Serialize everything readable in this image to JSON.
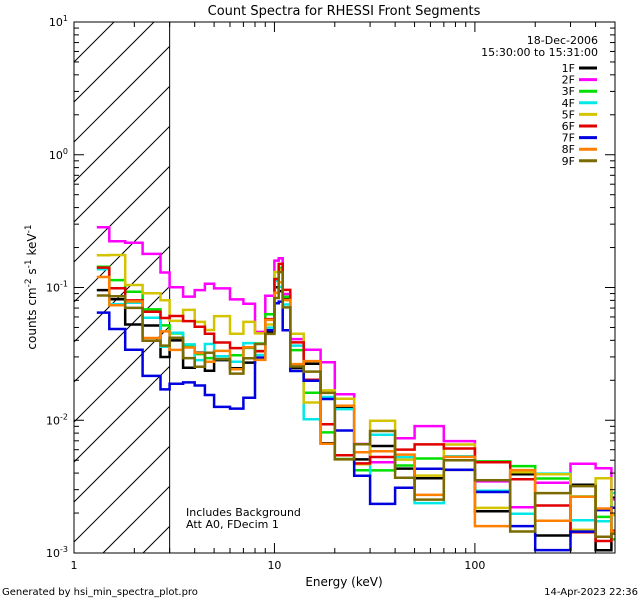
{
  "chart_data": {
    "type": "line",
    "title": "Count Spectra for RHESSI Front Segments",
    "xlabel": "Energy (keV)",
    "ylabel": {
      "base": "counts cm",
      "exp1": "-2",
      "mid1": " s",
      "exp2": "-1",
      "mid2": " keV",
      "exp3": "-1"
    },
    "x_scale": "log",
    "y_scale": "log",
    "xlim": [
      1,
      500
    ],
    "ylim": [
      0.001,
      10
    ],
    "x_tick_labels": [
      {
        "value": 1,
        "label": "1"
      },
      {
        "value": 10,
        "label": "10"
      },
      {
        "value": 100,
        "label": "100"
      }
    ],
    "y_tick_labels": [
      {
        "value": 10,
        "base": "10",
        "exp": "1"
      },
      {
        "value": 1,
        "base": "10",
        "exp": "0"
      },
      {
        "value": 0.1,
        "base": "10",
        "exp": "-1"
      },
      {
        "value": 0.01,
        "base": "10",
        "exp": "-2"
      },
      {
        "value": 0.001,
        "base": "10",
        "exp": "-3"
      }
    ],
    "hatched_region": [
      1,
      3
    ],
    "date": "18-Dec-2006",
    "time_range": "15:30:00 to 15:31:00",
    "annotations": [
      "Includes Background",
      "Att A0, FDecim 1"
    ],
    "series": [
      {
        "name": "1F",
        "color": "#000000",
        "offset": 0.0
      },
      {
        "name": "2F",
        "color": "#ff00ff",
        "offset": 0.53
      },
      {
        "name": "3F",
        "color": "#00e000",
        "offset": 0.12
      },
      {
        "name": "4F",
        "color": "#00e8e8",
        "offset": 0.08
      },
      {
        "name": "5F",
        "color": "#d4c400",
        "offset": 0.3
      },
      {
        "name": "6F",
        "color": "#e00000",
        "offset": 0.2
      },
      {
        "name": "7F",
        "color": "#0000e0",
        "offset": -0.25
      },
      {
        "name": "8F",
        "color": "#ff8000",
        "offset": 0.05
      },
      {
        "name": "9F",
        "color": "#7a6a00",
        "offset": 0.02
      }
    ],
    "energy_points": [
      1.3,
      1.5,
      1.8,
      2.2,
      2.7,
      3.0,
      3.5,
      4.0,
      4.5,
      5.0,
      6.0,
      7.0,
      8.0,
      9.0,
      10.0,
      10.5,
      11.0,
      12.0,
      14.0,
      17.0,
      20.0,
      25.0,
      30.0,
      40.0,
      50.0,
      70.0,
      100.0,
      150.0,
      200.0,
      300.0,
      400.0,
      480.0
    ],
    "base_values": [
      0.1,
      0.075,
      0.06,
      0.045,
      0.036,
      0.034,
      0.03,
      0.028,
      0.027,
      0.026,
      0.026,
      0.027,
      0.032,
      0.05,
      0.09,
      0.11,
      0.07,
      0.03,
      0.018,
      0.012,
      0.009,
      0.007,
      0.0055,
      0.0045,
      0.004,
      0.0035,
      0.003,
      0.0028,
      0.0025,
      0.0022,
      0.002,
      0.0018
    ],
    "footer_left": "Generated by hsi_min_spectra_plot.pro",
    "footer_right": "14-Apr-2023 22:36"
  }
}
